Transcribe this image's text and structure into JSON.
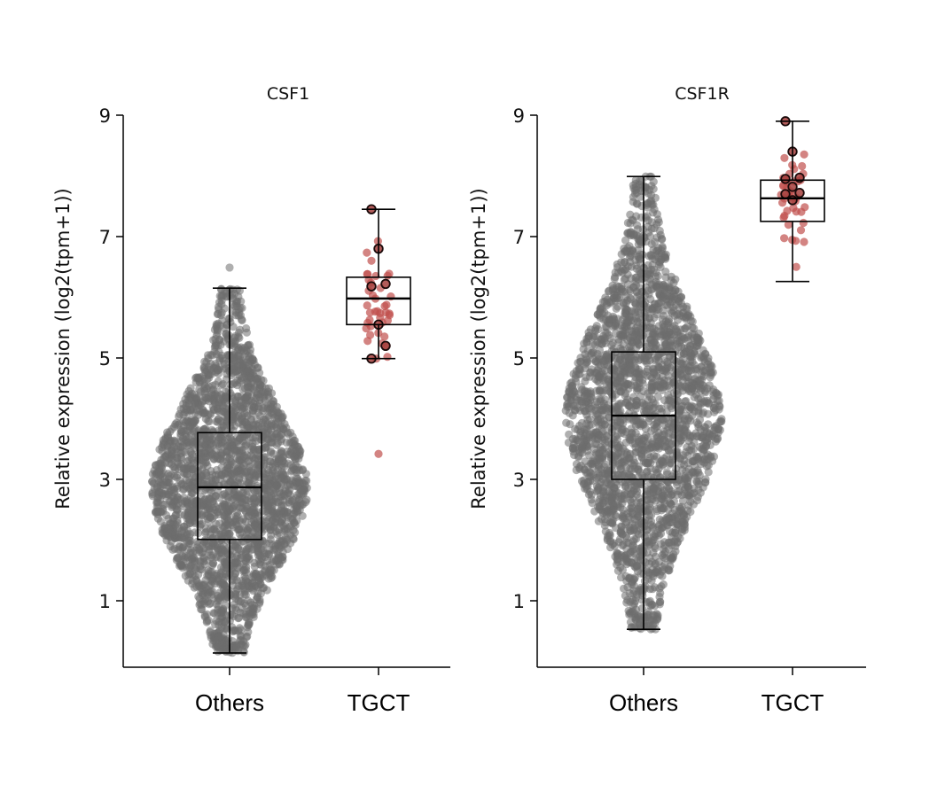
{
  "chart_data": [
    {
      "type": "box",
      "subtype": "box-with-beeswarm",
      "title": "CSF1",
      "xlabel": "",
      "ylabel": "Relative expression (log2(tpm+1))",
      "categories": [
        "Others",
        "TGCT"
      ],
      "ylim": [
        -0.1,
        9
      ],
      "yticks": [
        1,
        3,
        5,
        7,
        9
      ],
      "grid": false,
      "series": [
        {
          "name": "Others",
          "color": "#6e6e6e",
          "whisker_low": 0.14,
          "q1": 2.01,
          "median": 2.87,
          "q3": 3.77,
          "whisker_high": 6.15,
          "outliers": [
            6.49
          ],
          "n_points": "many (~thousands)"
        },
        {
          "name": "TGCT",
          "color": "#c0504d",
          "whisker_low": 4.99,
          "q1": 5.55,
          "median": 5.98,
          "q3": 6.33,
          "whisker_high": 7.45,
          "outliers": [
            3.42
          ],
          "highlighted_points": [
            7.45,
            6.8,
            6.22,
            6.18,
            5.55,
            5.2,
            4.99
          ]
        }
      ]
    },
    {
      "type": "box",
      "subtype": "box-with-beeswarm",
      "title": "CSF1R",
      "xlabel": "",
      "ylabel": "Relative expression (log2(tpm+1))",
      "categories": [
        "Others",
        "TGCT"
      ],
      "ylim": [
        -0.1,
        9
      ],
      "yticks": [
        1,
        3,
        5,
        7,
        9
      ],
      "grid": false,
      "series": [
        {
          "name": "Others",
          "color": "#6e6e6e",
          "whisker_low": 0.53,
          "q1": 3.0,
          "median": 4.05,
          "q3": 5.1,
          "whisker_high": 7.99,
          "outliers": [],
          "n_points": "many (~thousands)"
        },
        {
          "name": "TGCT",
          "color": "#c0504d",
          "whisker_low": 6.26,
          "q1": 7.25,
          "median": 7.63,
          "q3": 7.93,
          "whisker_high": 8.9,
          "outliers": [],
          "highlighted_points": [
            8.9,
            8.4,
            7.97,
            7.95,
            7.82,
            7.72,
            7.7,
            7.6
          ]
        }
      ]
    }
  ]
}
